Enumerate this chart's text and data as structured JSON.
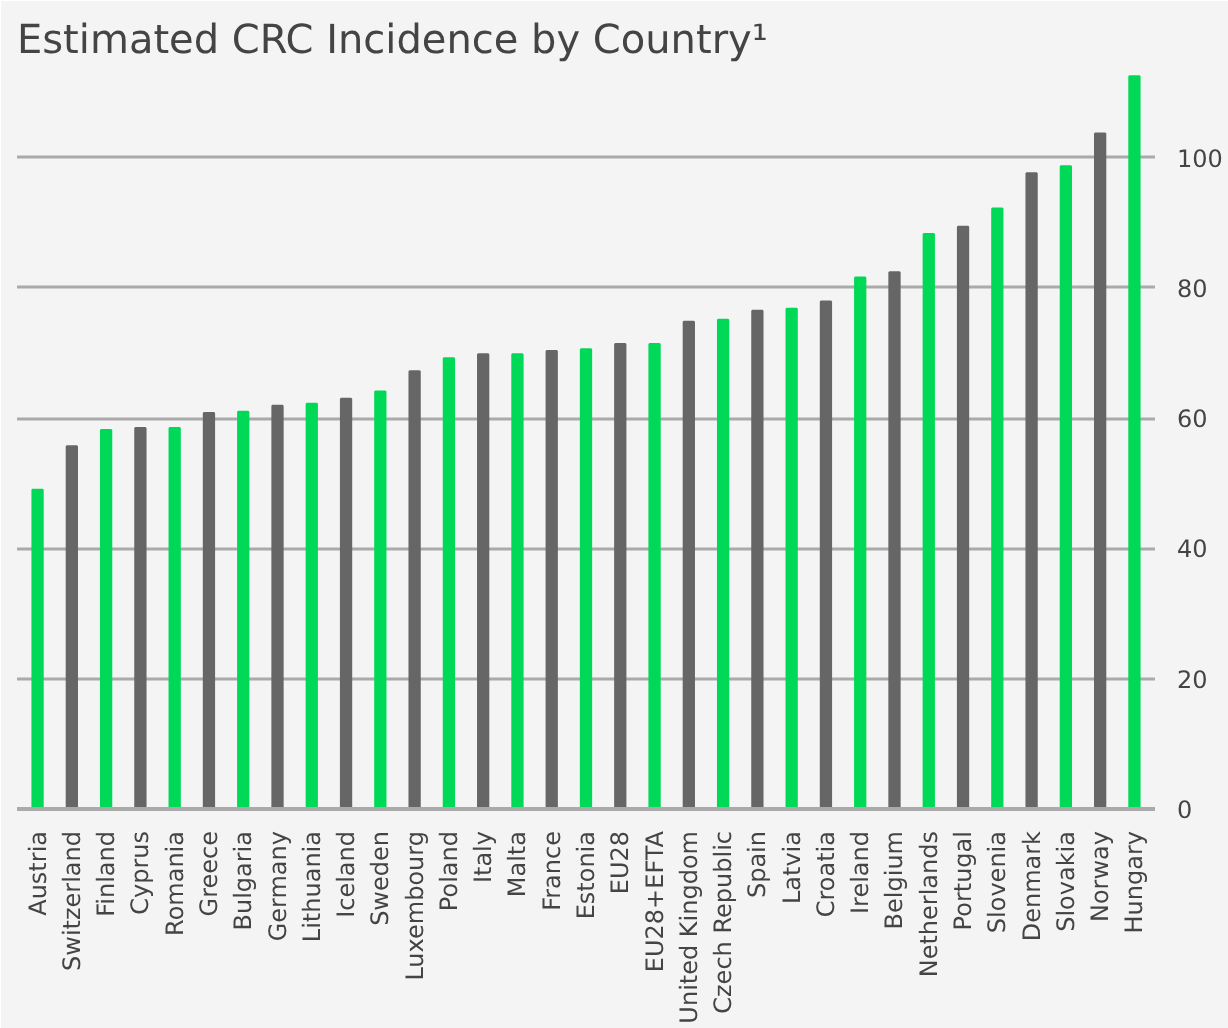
{
  "chart_data": {
    "type": "bar",
    "title": "Estimated CRC Incidence by Country¹",
    "categories": [
      "Austria",
      "Switzerland",
      "Finland",
      "Cyprus",
      "Romania",
      "Greece",
      "Bulgaria",
      "Germany",
      "Lithuania",
      "Iceland",
      "Sweden",
      "Luxembourg",
      "Poland",
      "Italy",
      "Malta",
      "France",
      "Estonia",
      "EU28",
      "EU28+EFTA",
      "United Kingdom",
      "Czech Republic",
      "Spain",
      "Latvia",
      "Croatia",
      "Ireland",
      "Belgium",
      "Netherlands",
      "Portugal",
      "Slovenia",
      "Denmark",
      "Slovakia",
      "Norway",
      "Hungary"
    ],
    "values": [
      49.0,
      55.7,
      58.2,
      58.5,
      58.5,
      60.8,
      61.0,
      61.9,
      62.2,
      63.0,
      64.1,
      67.2,
      69.2,
      69.8,
      69.8,
      70.3,
      70.6,
      71.4,
      71.4,
      74.8,
      75.1,
      76.5,
      76.8,
      77.9,
      81.6,
      82.4,
      88.3,
      89.4,
      92.2,
      97.6,
      98.7,
      103.7,
      112.5
    ],
    "colors": [
      "#00d957",
      "#666666",
      "#00d957",
      "#666666",
      "#00d957",
      "#666666",
      "#00d957",
      "#666666",
      "#00d957",
      "#666666",
      "#00d957",
      "#666666",
      "#00d957",
      "#666666",
      "#00d957",
      "#666666",
      "#00d957",
      "#666666",
      "#00d957",
      "#666666",
      "#00d957",
      "#666666",
      "#00d957",
      "#666666",
      "#00d957",
      "#666666",
      "#00d957",
      "#666666",
      "#00d957",
      "#666666",
      "#00d957",
      "#666666",
      "#00d957"
    ],
    "ylim": [
      0,
      113
    ],
    "yticks": [
      0,
      20,
      40,
      60,
      80,
      100
    ],
    "grid": "y"
  }
}
